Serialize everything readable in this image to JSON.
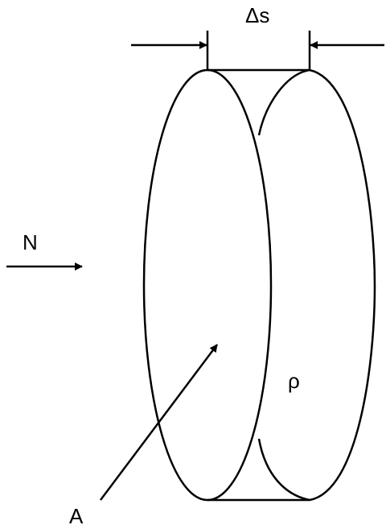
{
  "labels": {
    "thickness": "Δs",
    "flow": "N",
    "density": "ρ",
    "area": "A"
  },
  "colors": {
    "stroke": "#000000",
    "background": "#ffffff"
  }
}
